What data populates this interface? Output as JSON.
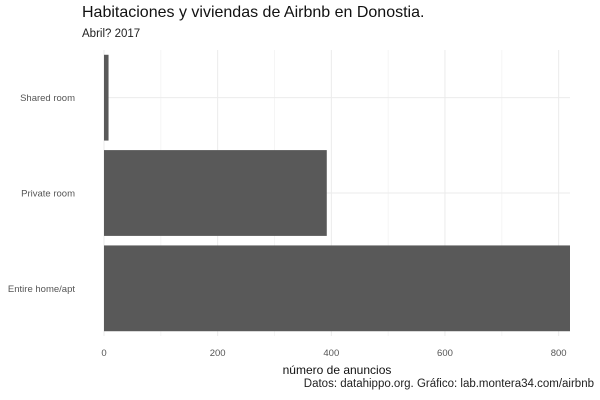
{
  "chart_data": {
    "type": "bar",
    "orientation": "horizontal",
    "title": "Habitaciones y viviendas de Airbnb en Donostia.",
    "subtitle": "Abril? 2017",
    "caption": "Datos: datahippo.org. Gráfico: lab.montera34.com/airbnb",
    "categories": [
      "Shared room",
      "Private room",
      "Entire home/apt"
    ],
    "values": [
      8,
      392,
      820
    ],
    "xlabel": "número de anuncios",
    "ylabel": "",
    "xticks": [
      0,
      200,
      400,
      600,
      800
    ],
    "xlim": [
      0,
      820
    ],
    "grid": true,
    "legend": "none",
    "bar_color": "#595959",
    "grid_color": "#ebebeb"
  }
}
